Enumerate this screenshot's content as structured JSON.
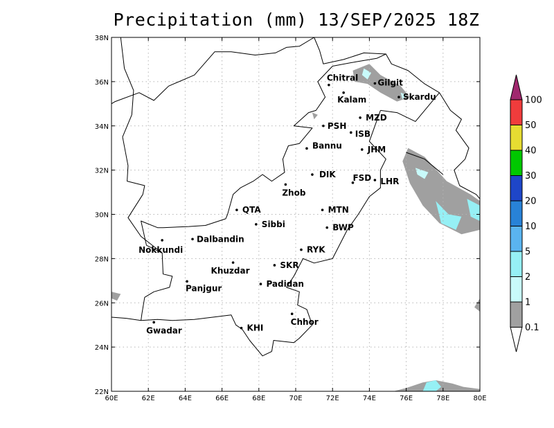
{
  "title": "Precipitation (mm) 13/SEP/2025 18Z",
  "map": {
    "lon_range": [
      60,
      80
    ],
    "lat_range": [
      22,
      38
    ],
    "x_ticks": [
      "60E",
      "62E",
      "64E",
      "66E",
      "68E",
      "70E",
      "72E",
      "74E",
      "76E",
      "78E",
      "80E"
    ],
    "y_ticks": [
      "22N",
      "24N",
      "26N",
      "28N",
      "30N",
      "32N",
      "34N",
      "36N",
      "38N"
    ],
    "grid": true
  },
  "cities": [
    {
      "name": "Chitral",
      "lon": 71.8,
      "lat": 35.85
    },
    {
      "name": "Gilgit",
      "lon": 74.3,
      "lat": 35.92
    },
    {
      "name": "Kalam",
      "lon": 72.6,
      "lat": 35.5
    },
    {
      "name": "Skardu",
      "lon": 75.6,
      "lat": 35.3
    },
    {
      "name": "MZD",
      "lon": 73.5,
      "lat": 34.37
    },
    {
      "name": "PSH",
      "lon": 71.5,
      "lat": 34.0
    },
    {
      "name": "ISB",
      "lon": 73.0,
      "lat": 33.7
    },
    {
      "name": "JHM",
      "lon": 73.6,
      "lat": 32.93
    },
    {
      "name": "Bannu",
      "lon": 70.6,
      "lat": 32.98
    },
    {
      "name": "DIK",
      "lon": 70.9,
      "lat": 31.8
    },
    {
      "name": "FSD",
      "lon": 73.1,
      "lat": 31.43
    },
    {
      "name": "LHR",
      "lon": 74.3,
      "lat": 31.55
    },
    {
      "name": "Zhob",
      "lon": 69.45,
      "lat": 31.35
    },
    {
      "name": "QTA",
      "lon": 66.8,
      "lat": 30.2
    },
    {
      "name": "MTN",
      "lon": 71.45,
      "lat": 30.2
    },
    {
      "name": "Sibbi",
      "lon": 67.85,
      "lat": 29.55
    },
    {
      "name": "BWP",
      "lon": 71.7,
      "lat": 29.4
    },
    {
      "name": "Dalbandin",
      "lon": 64.4,
      "lat": 28.88
    },
    {
      "name": "Nokkundi",
      "lon": 62.75,
      "lat": 28.83
    },
    {
      "name": "RYK",
      "lon": 70.3,
      "lat": 28.4
    },
    {
      "name": "Khuzdar",
      "lon": 66.6,
      "lat": 27.82
    },
    {
      "name": "SKR",
      "lon": 68.85,
      "lat": 27.7
    },
    {
      "name": "Padidan",
      "lon": 68.1,
      "lat": 26.85
    },
    {
      "name": "Panjgur",
      "lon": 64.1,
      "lat": 26.97
    },
    {
      "name": "Chhor",
      "lon": 69.8,
      "lat": 25.5
    },
    {
      "name": "Gwadar",
      "lon": 62.3,
      "lat": 25.12
    },
    {
      "name": "KHI",
      "lon": 67.05,
      "lat": 24.86
    }
  ],
  "legend": {
    "labels": [
      "0.1",
      "1",
      "2",
      "5",
      "10",
      "20",
      "30",
      "40",
      "50",
      "100"
    ],
    "colors": [
      "#a0a0a0",
      "#c8fafa",
      "#96f0f5",
      "#5ab4f0",
      "#2882d7",
      "#1e46c8",
      "#00c800",
      "#e6dc32",
      "#f03c3c",
      "#a0286e"
    ]
  }
}
